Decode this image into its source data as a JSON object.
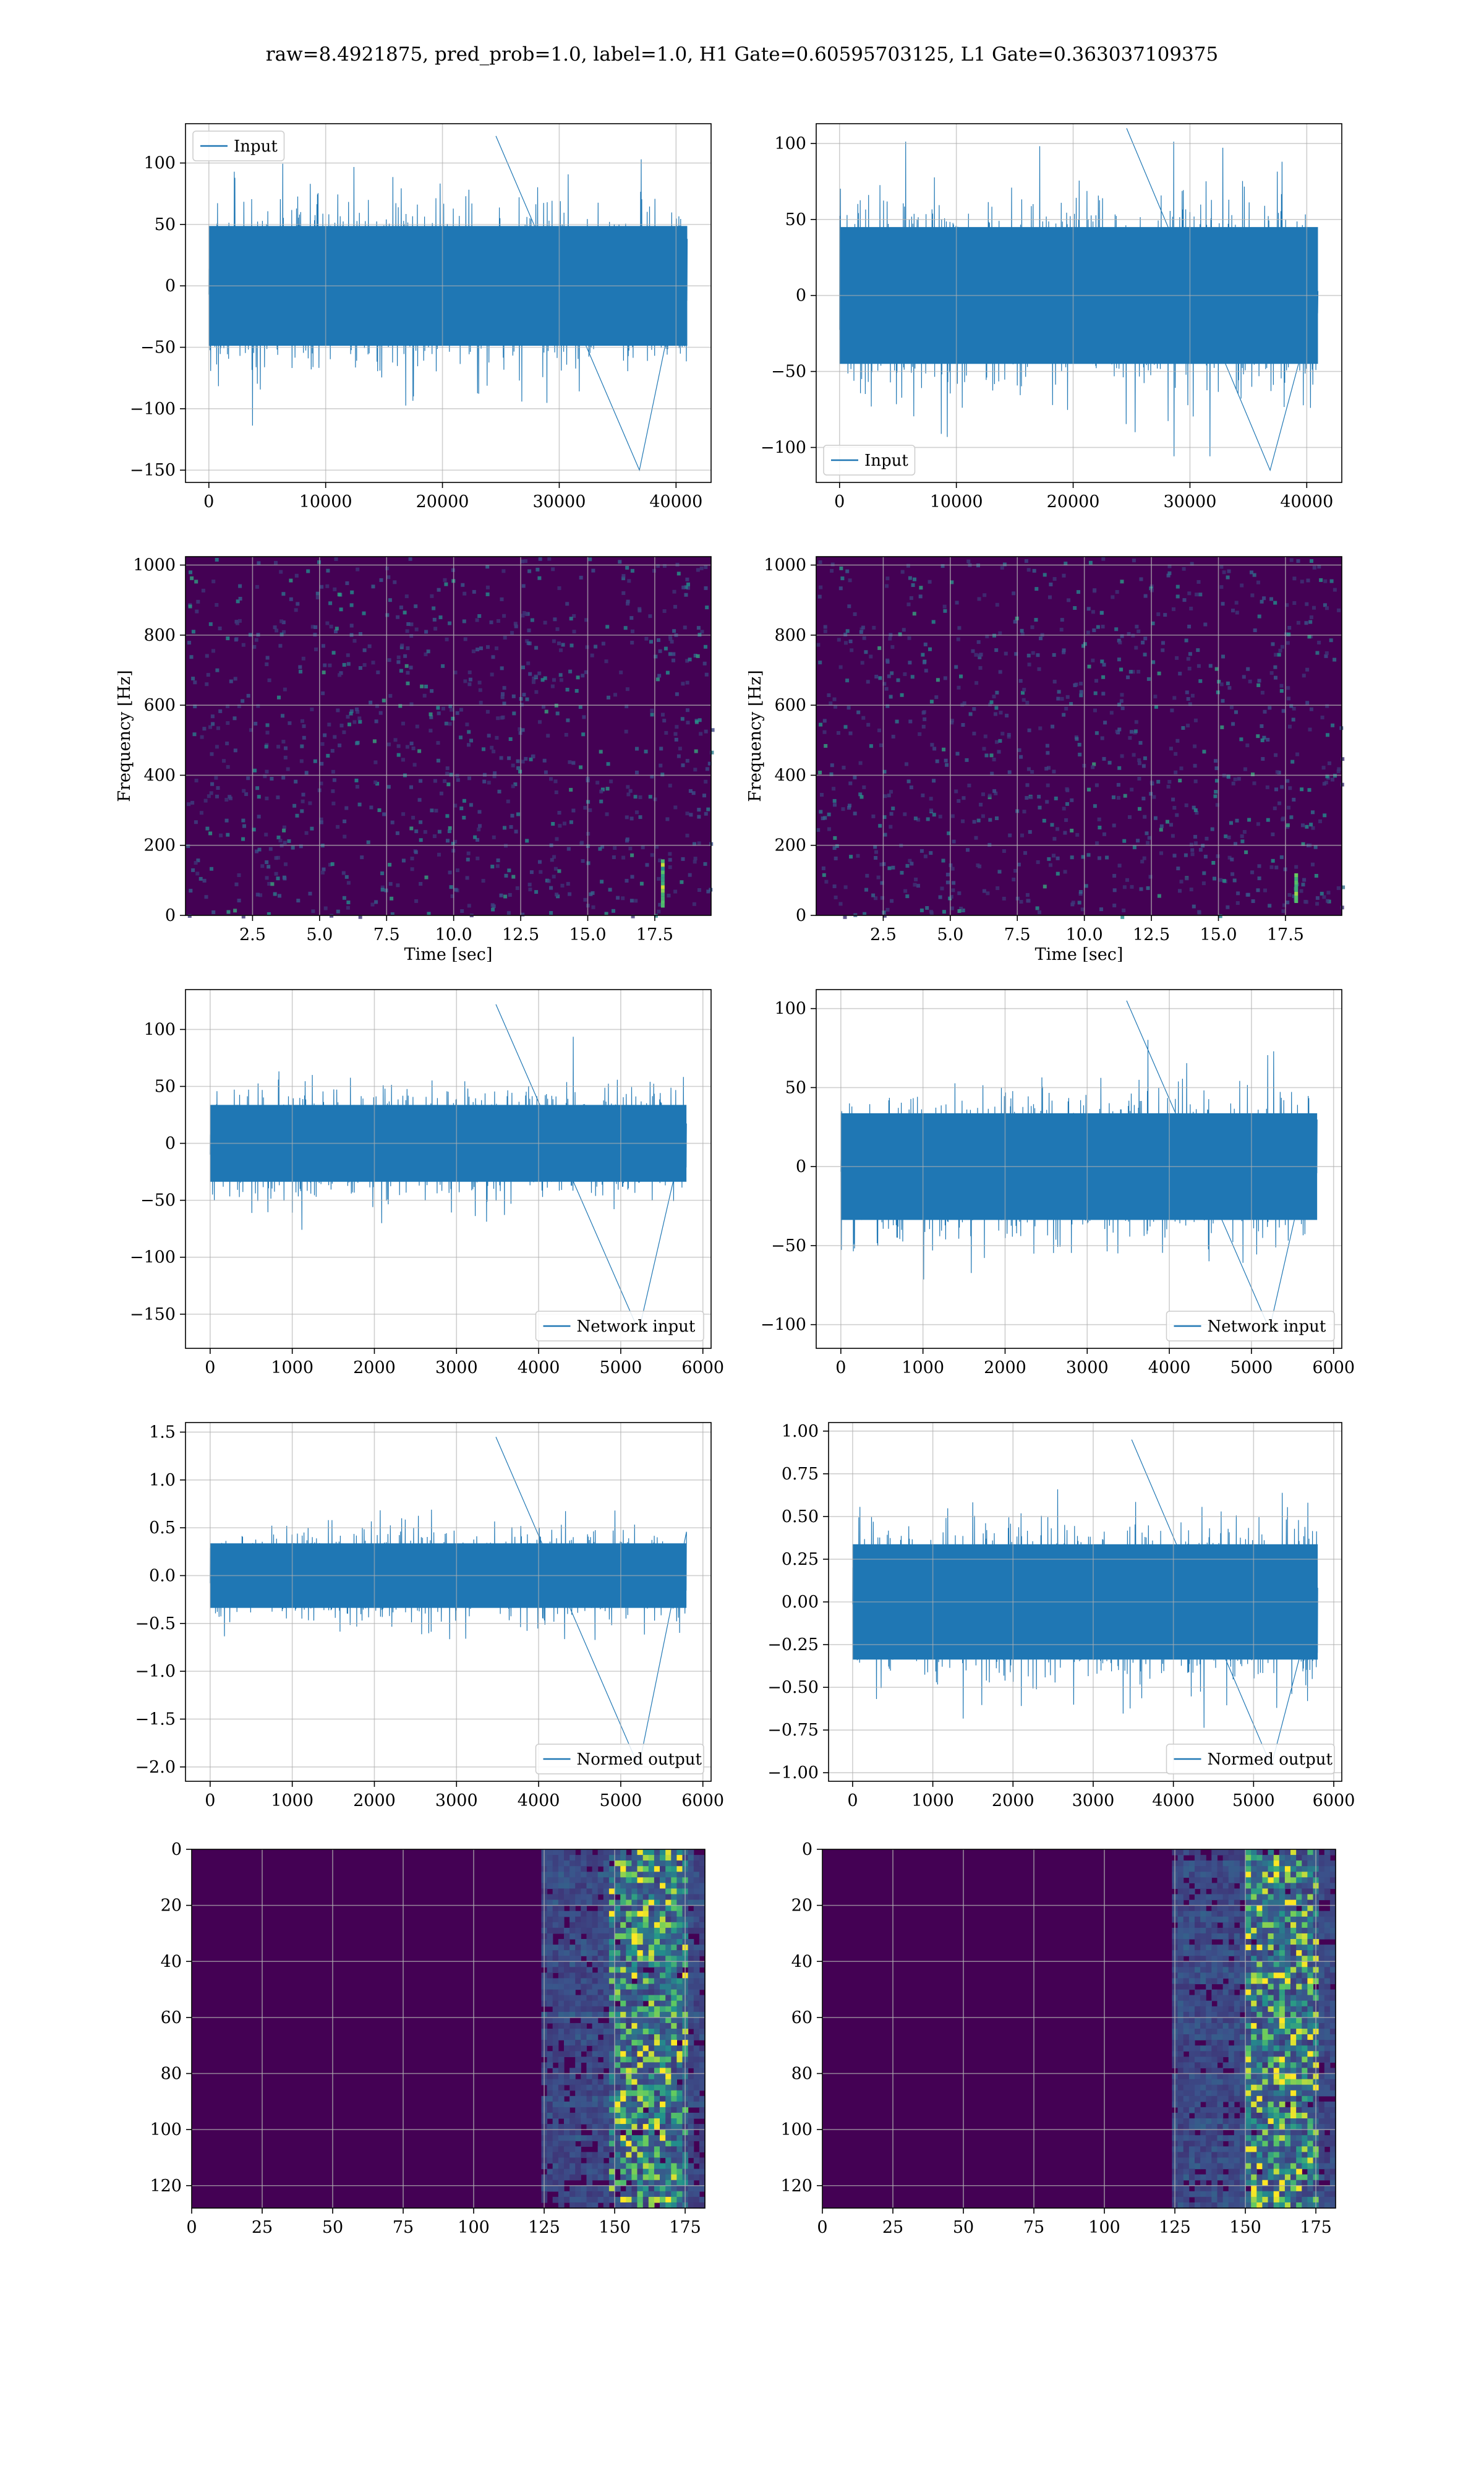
{
  "figure": {
    "title": "raw=8.4921875, pred_prob=1.0, label=1.0, H1 Gate=0.60595703125, L1 Gate=0.363037109375"
  },
  "colors": {
    "line": "#1f77b4",
    "viridis_low": "#440154",
    "viridis_mid": "#21918c",
    "viridis_high": "#fde725",
    "grid": "#b0b0b0",
    "axis": "#000000"
  },
  "chart_data": [
    {
      "id": "h1-input",
      "type": "line",
      "series": [
        {
          "name": "Input",
          "x_range": [
            0,
            40960
          ],
          "amplitude_typical": 65,
          "y_min": -150,
          "y_max": 122
        }
      ],
      "xlim": [
        -2000,
        43000
      ],
      "ylim": [
        -160,
        132
      ],
      "xticks": [
        0,
        10000,
        20000,
        30000,
        40000
      ],
      "yticks": [
        -150,
        -100,
        -50,
        0,
        50,
        100
      ],
      "legend": "upper left",
      "grid": true
    },
    {
      "id": "l1-input",
      "type": "line",
      "series": [
        {
          "name": "Input",
          "x_range": [
            0,
            40960
          ],
          "amplitude_typical": 60,
          "y_min": -115,
          "y_max": 110
        }
      ],
      "xlim": [
        -2000,
        43000
      ],
      "ylim": [
        -123,
        113
      ],
      "xticks": [
        0,
        10000,
        20000,
        30000,
        40000
      ],
      "yticks": [
        -100,
        -50,
        0,
        50,
        100
      ],
      "legend": "lower left",
      "grid": true
    },
    {
      "id": "h1-spectrogram",
      "type": "heatmap",
      "xlabel": "Time [sec]",
      "ylabel": "Frequency [Hz]",
      "xlim": [
        0,
        19.6
      ],
      "ylim": [
        0,
        1024
      ],
      "xticks": [
        2.5,
        5.0,
        7.5,
        10.0,
        12.5,
        15.0,
        17.5
      ],
      "yticks": [
        0,
        200,
        400,
        600,
        800,
        1000
      ],
      "hotspot": {
        "time": 17.8,
        "freq_range": [
          30,
          160
        ]
      },
      "grid": true
    },
    {
      "id": "l1-spectrogram",
      "type": "heatmap",
      "xlabel": "Time [sec]",
      "ylabel": "Frequency [Hz]",
      "xlim": [
        0,
        19.6
      ],
      "ylim": [
        0,
        1024
      ],
      "xticks": [
        2.5,
        5.0,
        7.5,
        10.0,
        12.5,
        15.0,
        17.5
      ],
      "yticks": [
        0,
        200,
        400,
        600,
        800,
        1000
      ],
      "hotspot": {
        "time": 17.9,
        "freq_range": [
          40,
          120
        ]
      },
      "grid": true
    },
    {
      "id": "h1-network-input",
      "type": "line",
      "series": [
        {
          "name": "Network input",
          "x_range": [
            0,
            5800
          ],
          "amplitude_typical": 45,
          "y_min": -165,
          "y_max": 122
        }
      ],
      "xlim": [
        -300,
        6100
      ],
      "ylim": [
        -180,
        135
      ],
      "xticks": [
        0,
        1000,
        2000,
        3000,
        4000,
        5000,
        6000
      ],
      "yticks": [
        -150,
        -100,
        -50,
        0,
        50,
        100
      ],
      "legend": "lower right",
      "grid": true
    },
    {
      "id": "l1-network-input",
      "type": "line",
      "series": [
        {
          "name": "Network input",
          "x_range": [
            0,
            5800
          ],
          "amplitude_typical": 45,
          "y_min": -103,
          "y_max": 105
        }
      ],
      "xlim": [
        -300,
        6100
      ],
      "ylim": [
        -115,
        112
      ],
      "xticks": [
        0,
        1000,
        2000,
        3000,
        4000,
        5000,
        6000
      ],
      "yticks": [
        -100,
        -50,
        0,
        50,
        100
      ],
      "legend": "lower right",
      "grid": true
    },
    {
      "id": "h1-normed-output",
      "type": "line",
      "series": [
        {
          "name": "Normed output",
          "x_range": [
            0,
            5800
          ],
          "amplitude_typical": 0.45,
          "y_min": -2.0,
          "y_max": 1.45
        }
      ],
      "xlim": [
        -300,
        6100
      ],
      "ylim": [
        -2.15,
        1.6
      ],
      "xticks": [
        0,
        1000,
        2000,
        3000,
        4000,
        5000,
        6000
      ],
      "yticks": [
        -2.0,
        -1.5,
        -1.0,
        -0.5,
        0.0,
        0.5,
        1.0,
        1.5
      ],
      "ytick_labels": [
        "−2.0",
        "−1.5",
        "−1.0",
        "−0.5",
        "0.0",
        "0.5",
        "1.0",
        "1.5"
      ],
      "legend": "lower right",
      "grid": true
    },
    {
      "id": "l1-normed-output",
      "type": "line",
      "series": [
        {
          "name": "Normed output",
          "x_range": [
            0,
            5800
          ],
          "amplitude_typical": 0.45,
          "y_min": -0.96,
          "y_max": 0.95
        }
      ],
      "xlim": [
        -300,
        6100
      ],
      "ylim": [
        -1.05,
        1.05
      ],
      "xticks": [
        0,
        1000,
        2000,
        3000,
        4000,
        5000,
        6000
      ],
      "yticks": [
        -1.0,
        -0.75,
        -0.5,
        -0.25,
        0.0,
        0.25,
        0.5,
        0.75,
        1.0
      ],
      "ytick_labels": [
        "−1.00",
        "−0.75",
        "−0.50",
        "−0.25",
        "0.00",
        "0.25",
        "0.50",
        "0.75",
        "1.00"
      ],
      "legend": "lower right",
      "grid": true
    },
    {
      "id": "h1-feature-map",
      "type": "heatmap",
      "xlim": [
        0,
        182
      ],
      "ylim": [
        128,
        0
      ],
      "xticks": [
        0,
        25,
        50,
        75,
        100,
        125,
        150,
        175
      ],
      "yticks": [
        0,
        20,
        40,
        60,
        80,
        100,
        120
      ],
      "active_region_x": [
        125,
        182
      ],
      "peak_region_x": [
        148,
        175
      ],
      "grid": true
    },
    {
      "id": "l1-feature-map",
      "type": "heatmap",
      "xlim": [
        0,
        182
      ],
      "ylim": [
        128,
        0
      ],
      "xticks": [
        0,
        25,
        50,
        75,
        100,
        125,
        150,
        175
      ],
      "yticks": [
        0,
        20,
        40,
        60,
        80,
        100,
        120
      ],
      "active_region_x": [
        125,
        182
      ],
      "peak_region_x": [
        150,
        175
      ],
      "grid": true
    }
  ]
}
